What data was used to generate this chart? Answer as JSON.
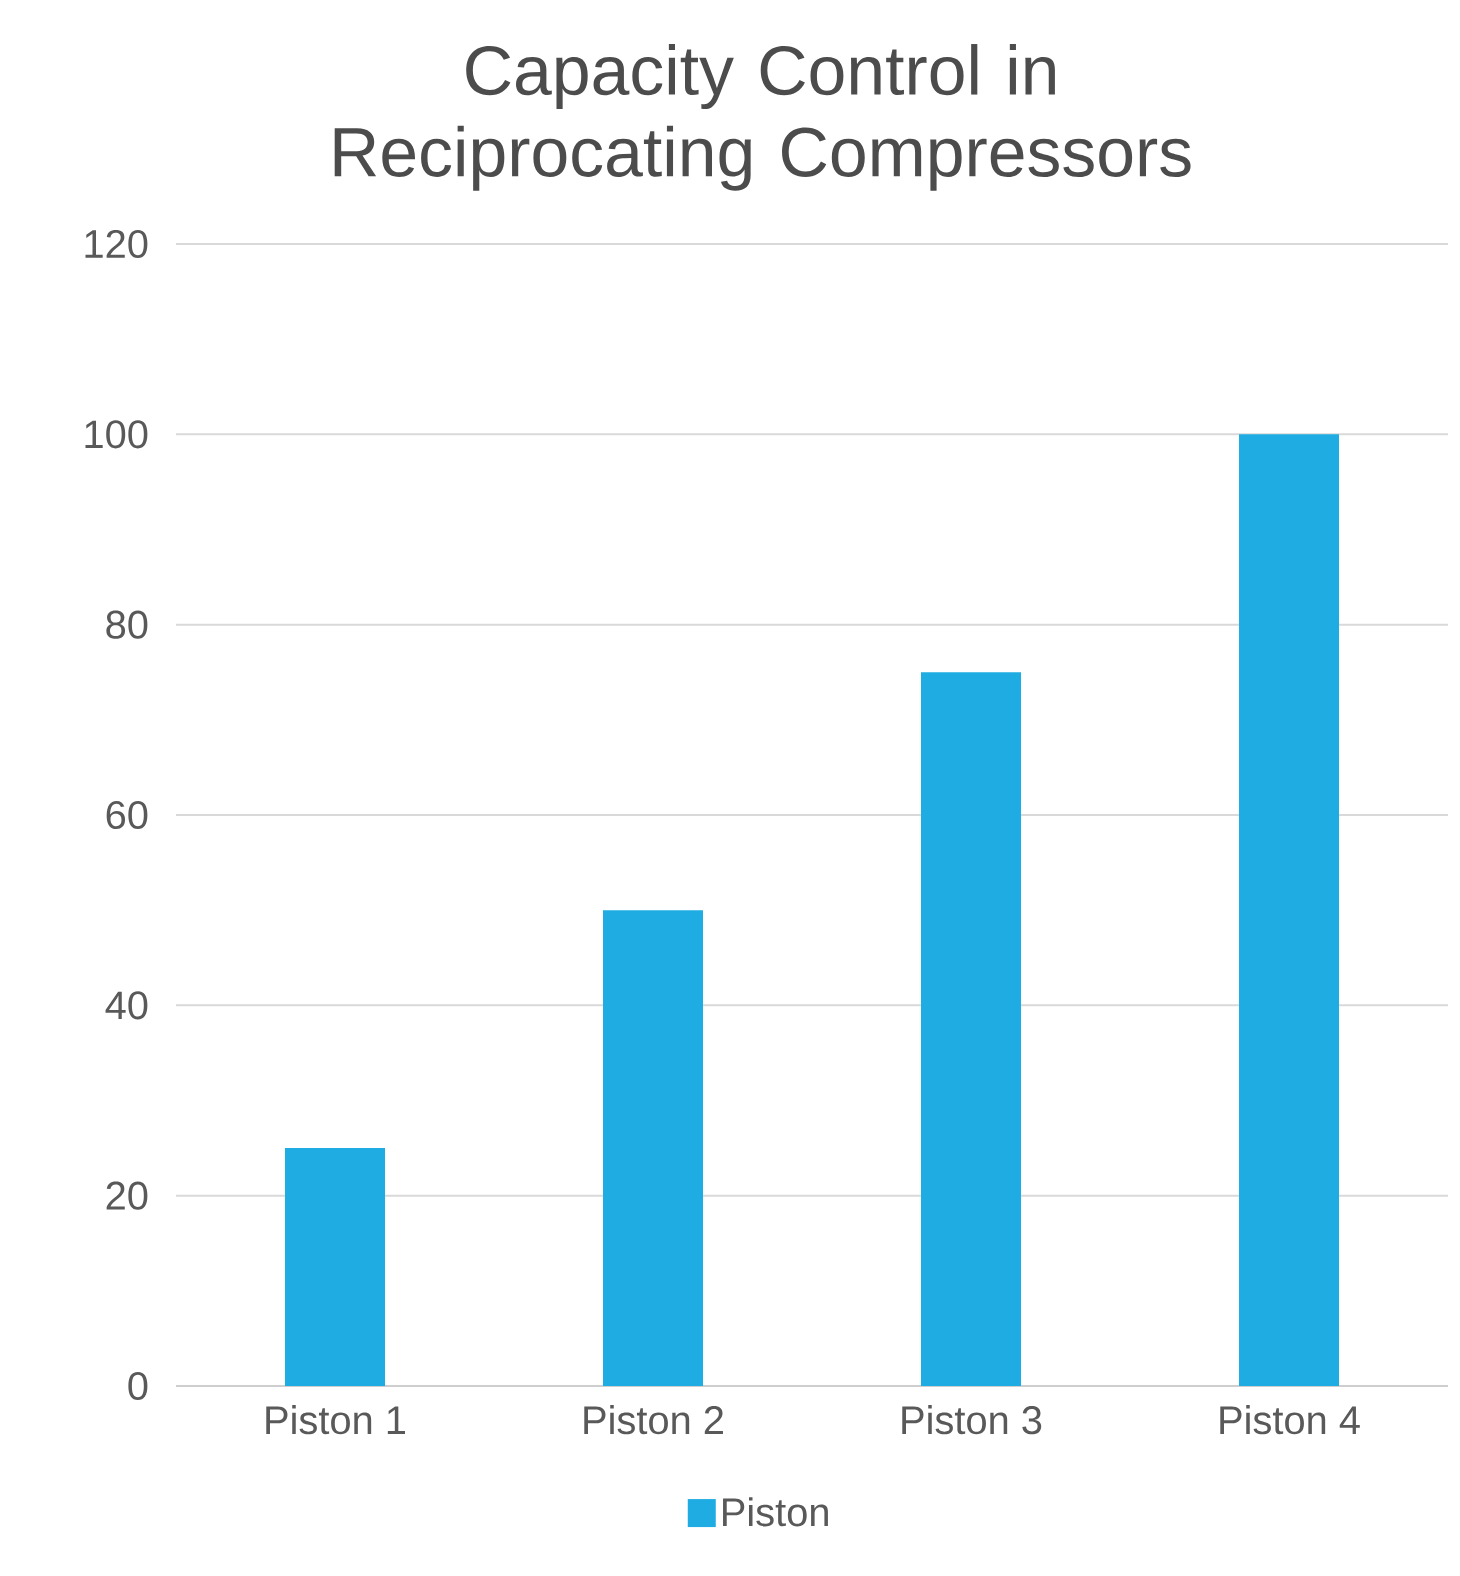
{
  "chart_data": {
    "type": "bar",
    "title": "Capacity Control in Reciprocating Compressors",
    "categories": [
      "Piston 1",
      "Piston 2",
      "Piston 3",
      "Piston 4"
    ],
    "series": [
      {
        "name": "Piston",
        "color": "#1eace2",
        "values": [
          25,
          50,
          75,
          100
        ]
      }
    ],
    "ylim": [
      0,
      120
    ],
    "yticks": [
      0,
      20,
      40,
      60,
      80,
      100,
      120
    ],
    "grid": "y",
    "legend": "bottom"
  }
}
